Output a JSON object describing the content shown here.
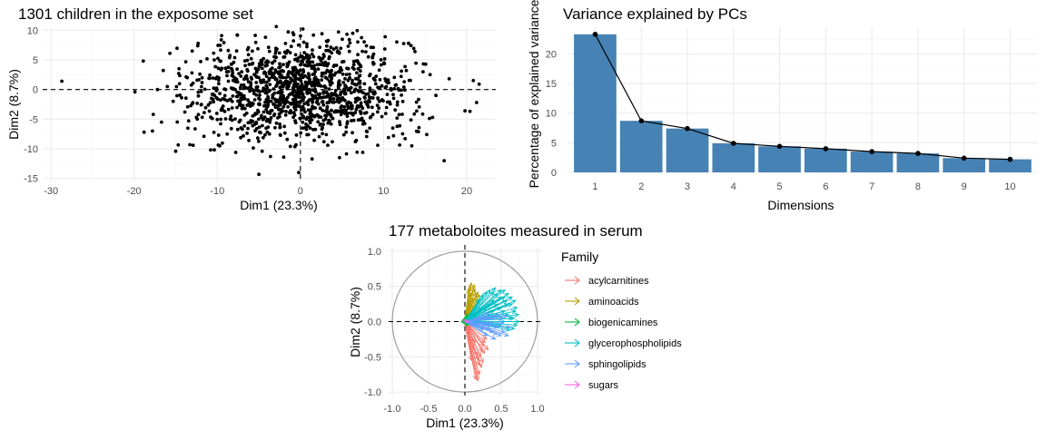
{
  "chart_data": [
    {
      "id": "individuals",
      "type": "scatter",
      "title": "1301 children in the exposome set",
      "xlabel": "Dim1 (23.3%)",
      "ylabel": "Dim2 (8.7%)",
      "xlim": [
        -31,
        23.5
      ],
      "ylim": [
        -15.5,
        10.5
      ],
      "xticks": [
        -30,
        -20,
        -10,
        0,
        10,
        20
      ],
      "yticks": [
        -15,
        -10,
        -5,
        0,
        5,
        10
      ],
      "reference_lines": {
        "x": 0,
        "y": 0,
        "style": "dashed"
      },
      "n_points": 1301,
      "distribution": {
        "center_x": 0,
        "sd_x": 6.7,
        "center_y": 0,
        "sd_y": 4.1
      },
      "points": [
        [
          -28.7,
          1.4
        ],
        [
          -19.9,
          -0.4
        ],
        [
          -18.9,
          4.8
        ],
        [
          -18.8,
          -7.2
        ],
        [
          -17.8,
          -7.0
        ],
        [
          -17.7,
          -4.2
        ],
        [
          -17.2,
          0.0
        ],
        [
          -16.7,
          -5.5
        ],
        [
          -16.5,
          3.2
        ],
        [
          -16.0,
          0.5
        ],
        [
          -15.7,
          6.1
        ],
        [
          -15.3,
          -2.0
        ],
        [
          -15.0,
          -10.4
        ],
        [
          -14.6,
          3.5
        ],
        [
          -13.9,
          -3.8
        ],
        [
          -13.6,
          2.0
        ],
        [
          -13.3,
          -9.3
        ],
        [
          -12.9,
          -9.4
        ],
        [
          -12.4,
          -5.0
        ],
        [
          -12.0,
          4.7
        ],
        [
          -11.6,
          -7.9
        ],
        [
          -10.8,
          -10.2
        ],
        [
          -9.7,
          -9.5
        ],
        [
          -9.2,
          7.9
        ],
        [
          -8.3,
          -6.6
        ],
        [
          -7.6,
          9.2
        ],
        [
          -6.2,
          -8.6
        ],
        [
          -5.0,
          -14.3
        ],
        [
          -4.6,
          -10.4
        ],
        [
          -4.2,
          8.8
        ],
        [
          -3.6,
          -11.3
        ],
        [
          -2.9,
          10.6
        ],
        [
          -2.0,
          -11.4
        ],
        [
          -1.2,
          -9.6
        ],
        [
          -0.2,
          -14.0
        ],
        [
          0.3,
          10.2
        ],
        [
          1.4,
          -11.7
        ],
        [
          2.6,
          9.4
        ],
        [
          3.3,
          -9.4
        ],
        [
          4.7,
          -11.5
        ],
        [
          5.6,
          9.3
        ],
        [
          6.9,
          8.0
        ],
        [
          7.5,
          -10.6
        ],
        [
          8.5,
          7.1
        ],
        [
          9.3,
          -9.4
        ],
        [
          10.2,
          8.9
        ],
        [
          11.2,
          -7.8
        ],
        [
          11.6,
          8.0
        ],
        [
          12.6,
          -8.3
        ],
        [
          13.0,
          7.8
        ],
        [
          13.4,
          -9.5
        ],
        [
          14.2,
          -7.1
        ],
        [
          14.8,
          4.3
        ],
        [
          15.2,
          -7.6
        ],
        [
          15.6,
          2.5
        ],
        [
          15.9,
          -4.7
        ],
        [
          16.3,
          -1.0
        ],
        [
          17.3,
          -12.0
        ],
        [
          17.9,
          1.8
        ],
        [
          19.8,
          -3.6
        ],
        [
          20.4,
          -3.7
        ],
        [
          20.8,
          1.5
        ],
        [
          21.2,
          -2.2
        ],
        [
          21.5,
          0.9
        ]
      ]
    },
    {
      "id": "scree",
      "type": "bar",
      "title": "Variance explained by PCs",
      "xlabel": "Dimensions",
      "ylabel": "Percentage of explained variances",
      "categories": [
        "1",
        "2",
        "3",
        "4",
        "5",
        "6",
        "7",
        "8",
        "9",
        "10"
      ],
      "values": [
        23.3,
        8.7,
        7.4,
        4.9,
        4.4,
        4.0,
        3.5,
        3.2,
        2.4,
        2.2
      ],
      "ylim": [
        0,
        24.5
      ],
      "yticks": [
        0,
        5,
        10,
        15,
        20
      ],
      "colors": {
        "bar": "#4682b4",
        "line": "#000000"
      },
      "overlay": "line_with_points"
    },
    {
      "id": "variables",
      "type": "scatter",
      "subtype": "correlation-circle",
      "title": "177 metaboloites measured in serum",
      "xlabel": "Dim1 (23.3%)",
      "ylabel": "Dim2 (8.7%)",
      "xlim": [
        -1.05,
        1.05
      ],
      "ylim": [
        -1.05,
        1.05
      ],
      "xticks": [
        -1.0,
        -0.5,
        0.0,
        0.5,
        1.0
      ],
      "yticks": [
        -1.0,
        -0.5,
        0.0,
        0.5,
        1.0
      ],
      "legend": {
        "title": "Family",
        "placement": "right",
        "entries": [
          {
            "label": "acylcarnitines",
            "color": "#f8766d"
          },
          {
            "label": "aminoacids",
            "color": "#b79f00"
          },
          {
            "label": "biogenicamines",
            "color": "#00ba38"
          },
          {
            "label": "glycerophospholipids",
            "color": "#00bfc4"
          },
          {
            "label": "sphingolipids",
            "color": "#619cff"
          },
          {
            "label": "sugars",
            "color": "#f564e3"
          }
        ]
      },
      "series": [
        {
          "name": "acylcarnitines",
          "color": "#f8766d",
          "vectors": [
            [
              0.05,
              -0.2
            ],
            [
              0.07,
              -0.3
            ],
            [
              0.08,
              -0.35
            ],
            [
              0.09,
              -0.4
            ],
            [
              0.1,
              -0.45
            ],
            [
              0.11,
              -0.5
            ],
            [
              0.12,
              -0.55
            ],
            [
              0.13,
              -0.6
            ],
            [
              0.14,
              -0.65
            ],
            [
              0.15,
              -0.7
            ],
            [
              0.16,
              -0.75
            ],
            [
              0.17,
              -0.8
            ],
            [
              0.18,
              -0.84
            ],
            [
              0.2,
              -0.62
            ],
            [
              0.22,
              -0.5
            ],
            [
              0.24,
              -0.42
            ],
            [
              0.26,
              -0.35
            ],
            [
              0.28,
              -0.3
            ],
            [
              0.3,
              -0.25
            ],
            [
              0.25,
              -0.58
            ],
            [
              0.2,
              -0.75
            ],
            [
              0.15,
              -0.82
            ],
            [
              0.04,
              -0.1
            ],
            [
              0.06,
              -0.25
            ],
            [
              0.08,
              -0.15
            ],
            [
              0.1,
              -0.3
            ],
            [
              0.12,
              -0.38
            ],
            [
              0.17,
              -0.48
            ],
            [
              0.19,
              -0.55
            ],
            [
              0.23,
              -0.65
            ],
            [
              0.27,
              -0.45
            ],
            [
              0.32,
              -0.4
            ],
            [
              0.14,
              -0.3
            ],
            [
              0.09,
              -0.55
            ]
          ]
        },
        {
          "name": "aminoacids",
          "color": "#b79f00",
          "vectors": [
            [
              0.05,
              0.45
            ],
            [
              0.07,
              0.5
            ],
            [
              0.09,
              0.55
            ],
            [
              0.1,
              0.42
            ],
            [
              0.12,
              0.48
            ],
            [
              0.08,
              0.38
            ],
            [
              0.14,
              0.45
            ],
            [
              0.16,
              0.4
            ],
            [
              0.11,
              0.32
            ],
            [
              0.06,
              0.3
            ],
            [
              0.13,
              0.52
            ],
            [
              0.15,
              0.35
            ],
            [
              0.18,
              0.42
            ],
            [
              0.2,
              0.38
            ],
            [
              0.04,
              0.15
            ],
            [
              0.1,
              0.25
            ],
            [
              0.18,
              0.3
            ]
          ]
        },
        {
          "name": "biogenicamines",
          "color": "#00ba38",
          "vectors": [
            [
              -0.05,
              0.0
            ],
            [
              -0.04,
              0.02
            ],
            [
              -0.03,
              -0.02
            ],
            [
              0.02,
              0.05
            ],
            [
              0.03,
              0.03
            ],
            [
              0.04,
              -0.02
            ],
            [
              0.05,
              0.08
            ],
            [
              0.02,
              -0.06
            ],
            [
              -0.02,
              0.04
            ],
            [
              0.06,
              0.0
            ],
            [
              0.03,
              0.1
            ],
            [
              0.05,
              -0.05
            ],
            [
              0.1,
              0.05
            ],
            [
              0.12,
              0.1
            ],
            [
              0.08,
              0.12
            ]
          ]
        },
        {
          "name": "glycerophospholipids",
          "color": "#00bfc4",
          "vectors": [
            [
              0.55,
              0.45
            ],
            [
              0.6,
              0.4
            ],
            [
              0.65,
              0.35
            ],
            [
              0.7,
              0.3
            ],
            [
              0.72,
              0.2
            ],
            [
              0.74,
              0.1
            ],
            [
              0.75,
              0.0
            ],
            [
              0.72,
              -0.05
            ],
            [
              0.68,
              -0.1
            ],
            [
              0.62,
              -0.12
            ],
            [
              0.58,
              0.3
            ],
            [
              0.5,
              0.35
            ],
            [
              0.45,
              0.4
            ],
            [
              0.4,
              0.42
            ],
            [
              0.35,
              0.45
            ],
            [
              0.3,
              0.42
            ],
            [
              0.25,
              0.38
            ],
            [
              0.2,
              0.32
            ],
            [
              0.5,
              0.2
            ],
            [
              0.55,
              0.15
            ],
            [
              0.6,
              0.1
            ],
            [
              0.65,
              0.05
            ],
            [
              0.45,
              0.25
            ],
            [
              0.4,
              0.3
            ],
            [
              0.35,
              0.25
            ],
            [
              0.3,
              0.2
            ],
            [
              0.55,
              0.0
            ],
            [
              0.5,
              -0.05
            ],
            [
              0.45,
              0.1
            ],
            [
              0.4,
              0.15
            ],
            [
              0.35,
              0.1
            ],
            [
              0.3,
              0.05
            ],
            [
              0.6,
              0.25
            ],
            [
              0.7,
              0.15
            ],
            [
              0.5,
              0.45
            ],
            [
              0.65,
              0.25
            ],
            [
              0.25,
              0.2
            ],
            [
              0.68,
              0.05
            ],
            [
              0.55,
              0.35
            ],
            [
              0.42,
              0.48
            ]
          ]
        },
        {
          "name": "sphingolipids",
          "color": "#619cff",
          "vectors": [
            [
              0.3,
              -0.05
            ],
            [
              0.35,
              -0.1
            ],
            [
              0.4,
              -0.15
            ],
            [
              0.45,
              -0.18
            ],
            [
              0.5,
              -0.2
            ],
            [
              0.55,
              -0.15
            ],
            [
              0.6,
              -0.2
            ],
            [
              0.38,
              0.05
            ],
            [
              0.42,
              0.08
            ],
            [
              0.48,
              0.1
            ],
            [
              0.52,
              0.05
            ],
            [
              0.58,
              0.08
            ],
            [
              0.33,
              0.12
            ],
            [
              0.28,
              0.08
            ],
            [
              0.46,
              -0.08
            ],
            [
              0.62,
              -0.08
            ],
            [
              0.53,
              -0.02
            ],
            [
              0.36,
              -0.03
            ],
            [
              0.25,
              -0.12
            ],
            [
              0.42,
              -0.25
            ],
            [
              0.31,
              -0.2
            ]
          ]
        },
        {
          "name": "sugars",
          "color": "#f564e3",
          "vectors": [
            [
              0.03,
              0.02
            ],
            [
              0.05,
              0.01
            ]
          ]
        }
      ]
    }
  ]
}
